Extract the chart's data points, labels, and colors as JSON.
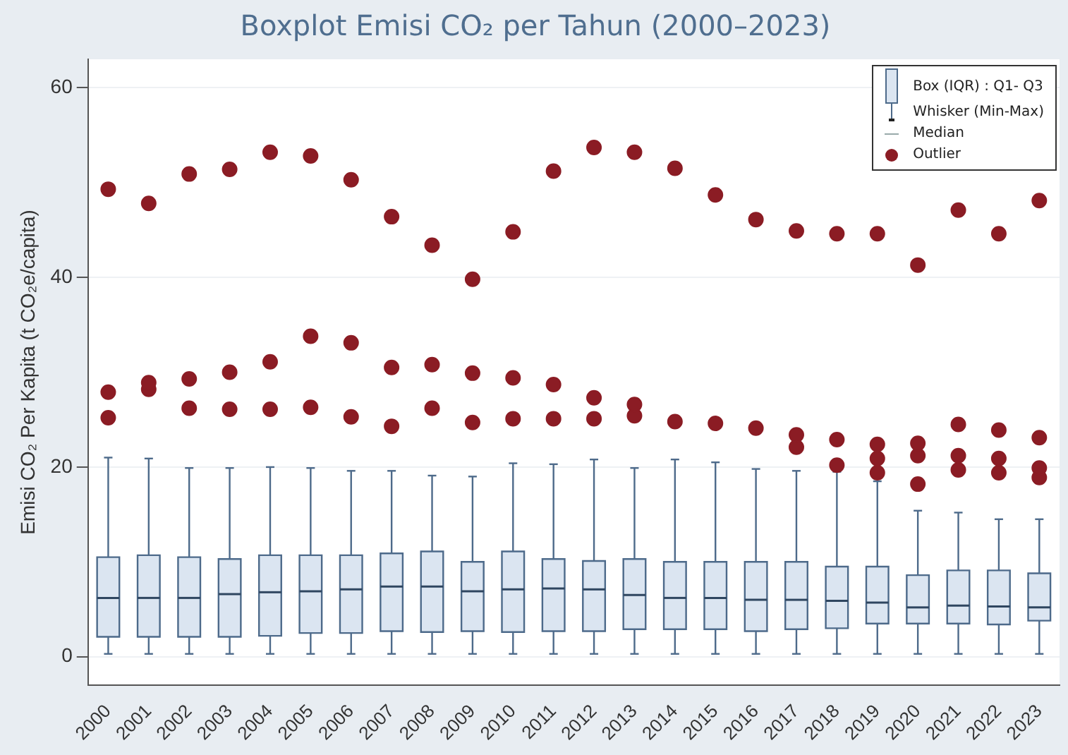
{
  "chart_data": {
    "type": "box",
    "title": "Boxplot Emisi CO₂ per Tahun (2000–2023)",
    "ylabel": "Emisi CO₂ Per Kapita (t CO₂e/capita)",
    "categories": [
      "2000",
      "2001",
      "2002",
      "2003",
      "2004",
      "2005",
      "2006",
      "2007",
      "2008",
      "2009",
      "2010",
      "2011",
      "2012",
      "2013",
      "2014",
      "2015",
      "2016",
      "2017",
      "2018",
      "2019",
      "2020",
      "2021",
      "2022",
      "2023"
    ],
    "ylim": [
      -3,
      63
    ],
    "yticks": [
      0,
      20,
      40,
      60
    ],
    "grid": "y",
    "legend": "top right",
    "annotations": [
      "Whisker (Min-Max)",
      "Median",
      "Outlier"
    ],
    "series": [
      {
        "name": "Box (IQR) : Q1- Q3",
        "color": "#dbe5f1",
        "boxes": [
          {
            "low": 0.3,
            "q1": 2.1,
            "median": 6.2,
            "q3": 10.5,
            "high": 21.0,
            "outliers": [
              49.3,
              27.9,
              25.2
            ]
          },
          {
            "low": 0.3,
            "q1": 2.1,
            "median": 6.2,
            "q3": 10.7,
            "high": 20.9,
            "outliers": [
              47.8,
              28.9,
              28.2
            ]
          },
          {
            "low": 0.3,
            "q1": 2.1,
            "median": 6.2,
            "q3": 10.5,
            "high": 19.9,
            "outliers": [
              50.9,
              29.3,
              26.2
            ]
          },
          {
            "low": 0.3,
            "q1": 2.1,
            "median": 6.6,
            "q3": 10.3,
            "high": 19.9,
            "outliers": [
              51.4,
              30.0,
              26.1
            ]
          },
          {
            "low": 0.3,
            "q1": 2.2,
            "median": 6.8,
            "q3": 10.7,
            "high": 20.0,
            "outliers": [
              53.2,
              31.1,
              26.1
            ]
          },
          {
            "low": 0.3,
            "q1": 2.5,
            "median": 6.9,
            "q3": 10.7,
            "high": 19.9,
            "outliers": [
              52.8,
              33.8,
              26.3
            ]
          },
          {
            "low": 0.3,
            "q1": 2.5,
            "median": 7.1,
            "q3": 10.7,
            "high": 19.6,
            "outliers": [
              50.3,
              33.1,
              25.3
            ]
          },
          {
            "low": 0.3,
            "q1": 2.7,
            "median": 7.4,
            "q3": 10.9,
            "high": 19.6,
            "outliers": [
              46.4,
              30.5,
              24.3
            ]
          },
          {
            "low": 0.3,
            "q1": 2.6,
            "median": 7.4,
            "q3": 11.1,
            "high": 19.1,
            "outliers": [
              43.4,
              30.8,
              26.2
            ]
          },
          {
            "low": 0.3,
            "q1": 2.7,
            "median": 6.9,
            "q3": 10.0,
            "high": 19.0,
            "outliers": [
              39.8,
              29.9,
              24.7
            ]
          },
          {
            "low": 0.3,
            "q1": 2.6,
            "median": 7.1,
            "q3": 11.1,
            "high": 20.4,
            "outliers": [
              44.8,
              29.4,
              25.1
            ]
          },
          {
            "low": 0.3,
            "q1": 2.7,
            "median": 7.2,
            "q3": 10.3,
            "high": 20.3,
            "outliers": [
              51.2,
              28.7,
              25.1
            ]
          },
          {
            "low": 0.3,
            "q1": 2.7,
            "median": 7.1,
            "q3": 10.1,
            "high": 20.8,
            "outliers": [
              53.7,
              27.3,
              25.1
            ]
          },
          {
            "low": 0.3,
            "q1": 2.9,
            "median": 6.5,
            "q3": 10.3,
            "high": 19.9,
            "outliers": [
              53.2,
              26.6,
              25.4
            ]
          },
          {
            "low": 0.3,
            "q1": 2.9,
            "median": 6.2,
            "q3": 10.0,
            "high": 20.8,
            "outliers": [
              51.5,
              24.8
            ]
          },
          {
            "low": 0.3,
            "q1": 2.9,
            "median": 6.2,
            "q3": 10.0,
            "high": 20.5,
            "outliers": [
              48.7,
              24.6
            ]
          },
          {
            "low": 0.3,
            "q1": 2.7,
            "median": 6.0,
            "q3": 10.0,
            "high": 19.8,
            "outliers": [
              46.1,
              24.1
            ]
          },
          {
            "low": 0.3,
            "q1": 2.9,
            "median": 6.0,
            "q3": 10.0,
            "high": 19.6,
            "outliers": [
              44.9,
              23.4,
              22.1
            ]
          },
          {
            "low": 0.3,
            "q1": 3.0,
            "median": 5.9,
            "q3": 9.5,
            "high": 19.5,
            "outliers": [
              44.6,
              22.9,
              20.2
            ]
          },
          {
            "low": 0.3,
            "q1": 3.5,
            "median": 5.7,
            "q3": 9.5,
            "high": 18.5,
            "outliers": [
              44.6,
              22.4,
              20.9,
              19.4
            ]
          },
          {
            "low": 0.3,
            "q1": 3.5,
            "median": 5.2,
            "q3": 8.6,
            "high": 15.4,
            "outliers": [
              41.3,
              22.5,
              21.2,
              18.2
            ]
          },
          {
            "low": 0.3,
            "q1": 3.5,
            "median": 5.4,
            "q3": 9.1,
            "high": 15.2,
            "outliers": [
              47.1,
              24.5,
              21.2,
              19.7
            ]
          },
          {
            "low": 0.3,
            "q1": 3.4,
            "median": 5.3,
            "q3": 9.1,
            "high": 14.5,
            "outliers": [
              44.6,
              23.9,
              20.9,
              19.4
            ]
          },
          {
            "low": 0.3,
            "q1": 3.8,
            "median": 5.2,
            "q3": 8.8,
            "high": 14.5,
            "outliers": [
              48.1,
              23.1,
              19.9,
              18.9
            ]
          }
        ]
      }
    ]
  }
}
